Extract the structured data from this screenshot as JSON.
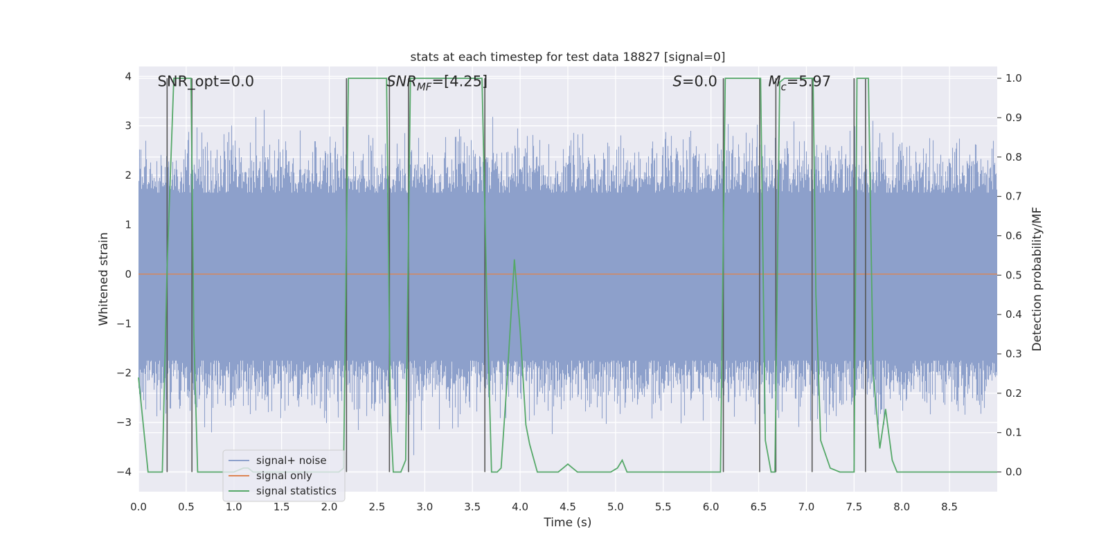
{
  "chart_data": {
    "type": "line",
    "title": "stats at each timestep for test data 18827 [signal=0]",
    "xlabel": "Time (s)",
    "ylabel": "Whitened strain",
    "y2label": "Detection probability/MF",
    "xlim": [
      0.0,
      9.0
    ],
    "ylim": [
      -4.4,
      4.2
    ],
    "y2lim": [
      -0.05,
      1.03
    ],
    "xticks": [
      "0.0",
      "0.5",
      "1.0",
      "1.5",
      "2.0",
      "2.5",
      "3.0",
      "3.5",
      "4.0",
      "4.5",
      "5.0",
      "5.5",
      "6.0",
      "6.5",
      "7.0",
      "7.5",
      "8.0",
      "8.5"
    ],
    "yticks": [
      "4",
      "3",
      "2",
      "1",
      "0",
      "−1",
      "−2",
      "−3",
      "−4"
    ],
    "y2ticks": [
      "1.0",
      "0.9",
      "0.8",
      "0.7",
      "0.6",
      "0.5",
      "0.4",
      "0.3",
      "0.2",
      "0.1",
      "0.0"
    ],
    "grid": true,
    "legend_position": "lower-left",
    "colors": {
      "noise": "#8da0cb",
      "signal": "#dd8452",
      "statistics": "#55a868",
      "markers": "#555555",
      "background": "#eaeaf2"
    },
    "annotations": [
      {
        "label": "SNR_opt=0.0",
        "x": 0.2,
        "y": 3.8
      },
      {
        "label": "SNR_MF=[4.25]",
        "x": 2.6,
        "y": 3.8
      },
      {
        "label": "S=0.0",
        "x": 5.6,
        "y": 3.8
      },
      {
        "label": "M_c=5.97",
        "x": 6.6,
        "y": 3.8
      }
    ],
    "series": [
      {
        "name": "signal+ noise",
        "axis": "left",
        "style": "noise band",
        "typical_range": [
          -1.7,
          1.6
        ],
        "extreme_range": [
          -4.0,
          3.9
        ]
      },
      {
        "name": "signal only",
        "axis": "left",
        "x": [
          0.0,
          9.0
        ],
        "y": [
          0.0,
          0.0
        ]
      },
      {
        "name": "signal statistics",
        "axis": "right",
        "x": [
          0.0,
          0.05,
          0.1,
          0.2,
          0.25,
          0.3,
          0.37,
          0.4,
          0.45,
          0.5,
          0.55,
          0.58,
          0.62,
          0.68,
          0.75,
          1.0,
          1.1,
          1.15,
          1.2,
          1.5,
          2.0,
          2.1,
          2.15,
          2.2,
          2.3,
          2.4,
          2.5,
          2.6,
          2.64,
          2.67,
          2.7,
          2.75,
          2.8,
          2.85,
          2.9,
          3.0,
          3.5,
          3.6,
          3.65,
          3.7,
          3.76,
          3.8,
          3.86,
          3.94,
          4.0,
          4.06,
          4.1,
          4.18,
          4.25,
          4.4,
          4.45,
          4.5,
          4.55,
          4.6,
          4.8,
          4.95,
          5.02,
          5.07,
          5.12,
          5.2,
          5.5,
          6.0,
          6.1,
          6.15,
          6.2,
          6.3,
          6.4,
          6.52,
          6.57,
          6.63,
          6.67,
          6.72,
          6.77,
          6.9,
          7.0,
          7.07,
          7.1,
          7.15,
          7.25,
          7.35,
          7.5,
          7.53,
          7.58,
          7.65,
          7.7,
          7.77,
          7.83,
          7.9,
          7.95,
          8.0,
          8.45,
          8.5,
          8.55,
          9.0
        ],
        "y": [
          0.24,
          0.12,
          0.0,
          0.0,
          0.0,
          0.52,
          1.0,
          1.0,
          1.0,
          1.0,
          1.0,
          0.35,
          0.0,
          0.0,
          0.0,
          0.0,
          0.01,
          0.01,
          0.0,
          0.0,
          0.0,
          0.0,
          0.01,
          1.0,
          1.0,
          1.0,
          1.0,
          1.0,
          0.15,
          0.0,
          0.0,
          0.0,
          0.03,
          1.0,
          1.0,
          1.0,
          1.0,
          1.0,
          0.45,
          0.0,
          0.0,
          0.01,
          0.22,
          0.54,
          0.36,
          0.12,
          0.07,
          0.0,
          0.0,
          0.0,
          0.01,
          0.02,
          0.01,
          0.0,
          0.0,
          0.0,
          0.01,
          0.03,
          0.0,
          0.0,
          0.0,
          0.0,
          0.0,
          1.0,
          1.0,
          1.0,
          1.0,
          1.0,
          0.08,
          0.0,
          0.0,
          0.99,
          1.0,
          1.0,
          1.0,
          1.0,
          0.45,
          0.08,
          0.01,
          0.0,
          0.0,
          1.0,
          1.0,
          1.0,
          0.25,
          0.06,
          0.16,
          0.03,
          0.0,
          0.0,
          0.0,
          0.0,
          0.0,
          0.0
        ],
        "markers_x": [
          0.3,
          0.56,
          2.18,
          2.63,
          2.83,
          3.63,
          6.13,
          6.51,
          6.68,
          7.06,
          7.5,
          7.62
        ]
      }
    ]
  }
}
